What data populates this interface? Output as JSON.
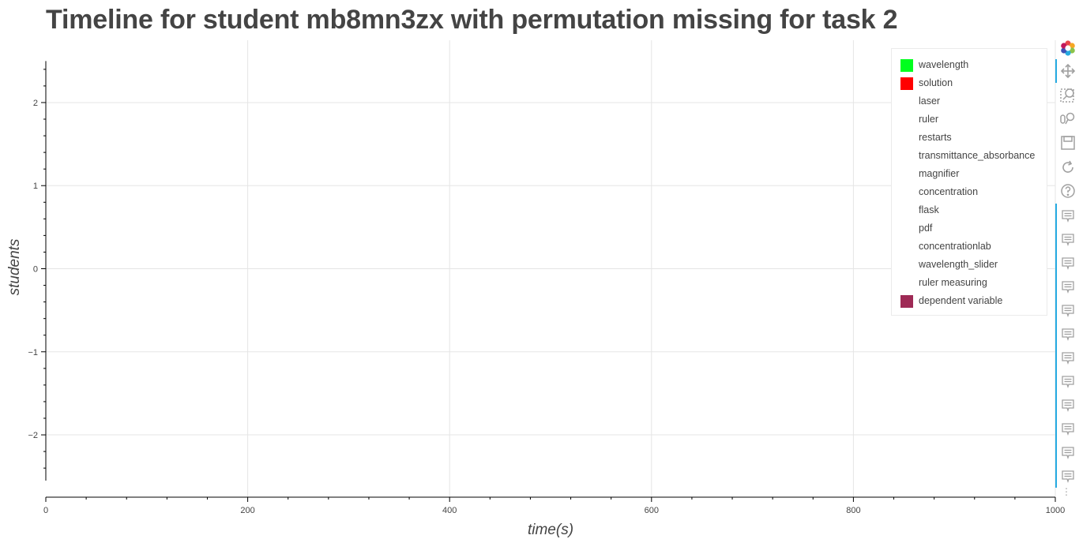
{
  "chart_data": {
    "type": "scatter",
    "title": "Timeline for student mb8mn3zx with permutation missing for task 2",
    "xlabel": "time(s)",
    "ylabel": "students",
    "xlim": [
      0,
      1000
    ],
    "ylim": [
      -2.75,
      2.75
    ],
    "x_ticks": [
      0,
      200,
      400,
      600,
      800,
      1000
    ],
    "x_tick_labels": [
      "0",
      "200",
      "400",
      "600",
      "800",
      "1000"
    ],
    "y_ticks": [
      2,
      1,
      0,
      -1,
      -2
    ],
    "y_tick_labels": [
      "2",
      "1",
      "0",
      "−1",
      "−2"
    ],
    "grid": true,
    "legend_position": "top-right",
    "series": [
      {
        "name": "wavelength",
        "color": "#00ff1e",
        "values": []
      },
      {
        "name": "solution",
        "color": "#ff0000",
        "values": []
      },
      {
        "name": "laser",
        "color": "",
        "values": []
      },
      {
        "name": "ruler",
        "color": "",
        "values": []
      },
      {
        "name": "restarts",
        "color": "",
        "values": []
      },
      {
        "name": "transmittance_absorbance",
        "color": "",
        "values": []
      },
      {
        "name": "magnifier",
        "color": "",
        "values": []
      },
      {
        "name": "concentration",
        "color": "",
        "values": []
      },
      {
        "name": "flask",
        "color": "",
        "values": []
      },
      {
        "name": "pdf",
        "color": "",
        "values": []
      },
      {
        "name": "concentrationlab",
        "color": "",
        "values": []
      },
      {
        "name": "wavelength_slider",
        "color": "",
        "values": []
      },
      {
        "name": "ruler measuring",
        "color": "",
        "values": []
      },
      {
        "name": "dependent variable",
        "color": "#9e2a55",
        "values": []
      }
    ]
  },
  "toolbar": {
    "tools": [
      {
        "name": "bokeh-logo",
        "icon": "bokeh-logo-icon"
      },
      {
        "name": "pan-tool",
        "icon": "pan-icon"
      },
      {
        "name": "box-zoom-tool",
        "icon": "box-zoom-icon"
      },
      {
        "name": "wheel-zoom-tool",
        "icon": "wheel-zoom-icon"
      },
      {
        "name": "save-tool",
        "icon": "save-icon"
      },
      {
        "name": "reset-tool",
        "icon": "reset-icon"
      },
      {
        "name": "help-tool",
        "icon": "help-icon"
      }
    ],
    "hover_tool_count": 12,
    "more_label": "⋮"
  },
  "colors": {
    "text": "#444444",
    "grid": "#e5e5e5",
    "axis": "#000000",
    "toolbar_active": "#26aae1",
    "toolbar_icon": "#a0a0a0"
  }
}
